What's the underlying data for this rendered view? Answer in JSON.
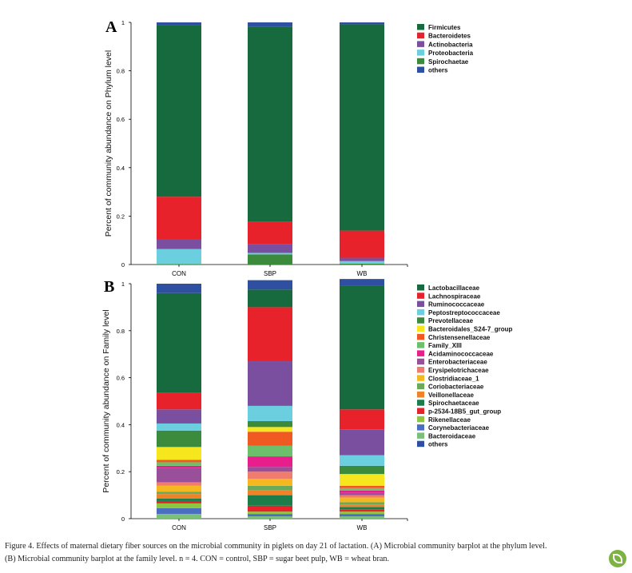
{
  "chart_data": [
    {
      "type": "bar",
      "stacked": true,
      "panel_label": "A",
      "ylabel": "Percent of community abundance on Phylum level",
      "ylim": [
        0,
        1
      ],
      "yticks": [
        "0",
        "0.2",
        "0.4",
        "0.6",
        "0.8",
        "1"
      ],
      "categories": [
        "CON",
        "SBP",
        "WB"
      ],
      "legend_position": "right",
      "series": [
        {
          "name": "Spirochaetae",
          "color": "#3c8a3c",
          "values": [
            0.002,
            0.042,
            0.004
          ]
        },
        {
          "name": "Proteobacteria",
          "color": "#6ccfe0",
          "values": [
            0.062,
            0.006,
            0.01
          ]
        },
        {
          "name": "Actinobacteria",
          "color": "#7b4fa0",
          "values": [
            0.04,
            0.035,
            0.014
          ]
        },
        {
          "name": "Bacteroidetes",
          "color": "#e8222a",
          "values": [
            0.176,
            0.095,
            0.112
          ]
        },
        {
          "name": "Firmicutes",
          "color": "#176a3e",
          "values": [
            0.707,
            0.805,
            0.852
          ]
        },
        {
          "name": "others",
          "color": "#2f4fa0",
          "values": [
            0.013,
            0.017,
            0.008
          ]
        }
      ],
      "legend": [
        "Firmicutes",
        "Bacteroidetes",
        "Actinobacteria",
        "Proteobacteria",
        "Spirochaetae",
        "others"
      ]
    },
    {
      "type": "bar",
      "stacked": true,
      "panel_label": "B",
      "ylabel": "Percent of community abundance on Family level",
      "ylim": [
        0,
        1
      ],
      "yticks": [
        "0",
        "0.2",
        "0.4",
        "0.6",
        "0.8",
        "1"
      ],
      "categories": [
        "CON",
        "SBP",
        "WB"
      ],
      "legend_position": "right",
      "series": [
        {
          "name": "Bacteroidaceae",
          "color": "#7bbf7b",
          "values": [
            0.02,
            0.01,
            0.01
          ]
        },
        {
          "name": "Corynebacteriaceae",
          "color": "#4a6fc0",
          "values": [
            0.025,
            0.01,
            0.01
          ]
        },
        {
          "name": "Rikenellaceae",
          "color": "#8dc63f",
          "values": [
            0.02,
            0.01,
            0.01
          ]
        },
        {
          "name": "p-2534-18B5_gut_group",
          "color": "#e8222a",
          "values": [
            0.01,
            0.025,
            0.01
          ]
        },
        {
          "name": "Spirochaetaceae",
          "color": "#1d7d4a",
          "values": [
            0.01,
            0.045,
            0.01
          ]
        },
        {
          "name": "Veillonellaceae",
          "color": "#f0832a",
          "values": [
            0.02,
            0.02,
            0.01
          ]
        },
        {
          "name": "Coriobacteriaceae",
          "color": "#6aaa5a",
          "values": [
            0.01,
            0.02,
            0.01
          ]
        },
        {
          "name": "Clostridiaceae_1",
          "color": "#f5b820",
          "values": [
            0.025,
            0.03,
            0.02
          ]
        },
        {
          "name": "Erysipelotrichaceae",
          "color": "#ef7c6c",
          "values": [
            0.015,
            0.03,
            0.01
          ]
        },
        {
          "name": "Enterobacteriaceae",
          "color": "#9a4f9a",
          "values": [
            0.06,
            0.02,
            0.01
          ]
        },
        {
          "name": "Acidaminococcaceae",
          "color": "#e81e8c",
          "values": [
            0.01,
            0.045,
            0.01
          ]
        },
        {
          "name": "Family_XIII",
          "color": "#6cc06c",
          "values": [
            0.015,
            0.045,
            0.01
          ]
        },
        {
          "name": "Christensenellaceae",
          "color": "#f05a22",
          "values": [
            0.01,
            0.06,
            0.01
          ]
        },
        {
          "name": "Bacteroidales_S24-7_group",
          "color": "#f5e61e",
          "values": [
            0.055,
            0.02,
            0.05
          ]
        },
        {
          "name": "Prevotellaceae",
          "color": "#3c8a3c",
          "values": [
            0.07,
            0.025,
            0.035
          ]
        },
        {
          "name": "Peptostreptococcaceae",
          "color": "#6ccfe0",
          "values": [
            0.03,
            0.065,
            0.045
          ]
        },
        {
          "name": "Ruminococcaceae",
          "color": "#7b4fa0",
          "values": [
            0.06,
            0.19,
            0.11
          ]
        },
        {
          "name": "Lachnospiraceae",
          "color": "#e8222a",
          "values": [
            0.07,
            0.23,
            0.085
          ]
        },
        {
          "name": "Lactobacillaceae",
          "color": "#176a3e",
          "values": [
            0.425,
            0.075,
            0.525
          ]
        },
        {
          "name": "others",
          "color": "#2f4fa0",
          "values": [
            0.04,
            0.04,
            0.03
          ]
        }
      ],
      "legend": [
        "Lactobacillaceae",
        "Lachnospiraceae",
        "Ruminococcaceae",
        "Peptostreptococcaceae",
        "Prevotellaceae",
        "Bacteroidales_S24-7_group",
        "Christensenellaceae",
        "Family_XIII",
        "Acidaminococcaceae",
        "Enterobacteriaceae",
        "Erysipelotrichaceae",
        "Clostridiaceae_1",
        "Coriobacteriaceae",
        "Veillonellaceae",
        "Spirochaetaceae",
        "p-2534-18B5_gut_group",
        "Rikenellaceae",
        "Corynebacteriaceae",
        "Bacteroidaceae",
        "others"
      ]
    }
  ],
  "caption": {
    "line1": "Figure 4. Effects of maternal dietary fiber sources on the microbial community in piglets on day 21 of lactation. (A) Microbial community barplot at the phylum level.",
    "line2": "(B) Microbial community barplot at the family level. n = 4. CON = control, SBP = sugar beet pulp, WB = wheat bran."
  }
}
